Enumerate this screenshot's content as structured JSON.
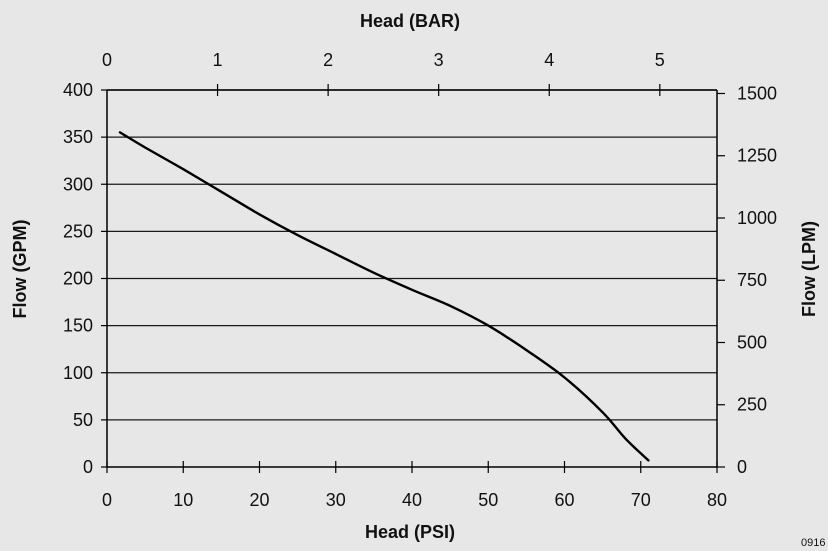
{
  "chart_data": {
    "type": "line",
    "series": [
      {
        "x": [
          1.7,
          5,
          10,
          15,
          20,
          25,
          30,
          35,
          40,
          45,
          50,
          55,
          60,
          65,
          68,
          71
        ],
        "y": [
          355,
          339,
          316,
          292,
          268,
          246,
          226,
          206,
          188,
          171,
          150,
          124,
          95,
          58,
          30,
          7
        ]
      }
    ],
    "x_bottom": {
      "label": "Head (PSI)",
      "range": [
        0,
        80
      ],
      "ticks": [
        0,
        10,
        20,
        30,
        40,
        50,
        60,
        70,
        80
      ]
    },
    "x_top": {
      "label": "Head (BAR)",
      "ticks": [
        0,
        1,
        2,
        3,
        4,
        5
      ],
      "tick_psi_positions": [
        0,
        14.5,
        29,
        43.5,
        58,
        72.5
      ]
    },
    "y_left": {
      "label": "Flow (GPM)",
      "range": [
        0,
        400
      ],
      "ticks": [
        0,
        50,
        100,
        150,
        200,
        250,
        300,
        350,
        400
      ]
    },
    "y_right": {
      "label": "Flow (LPM)",
      "ticks": [
        0,
        250,
        500,
        750,
        1000,
        1250,
        1500
      ],
      "gpm_per_unit": 0.2642
    },
    "grid": "horizontal",
    "legend": "none",
    "line_color": "#000000",
    "background_color": "#e7e7e8"
  },
  "reference_code": "0916"
}
